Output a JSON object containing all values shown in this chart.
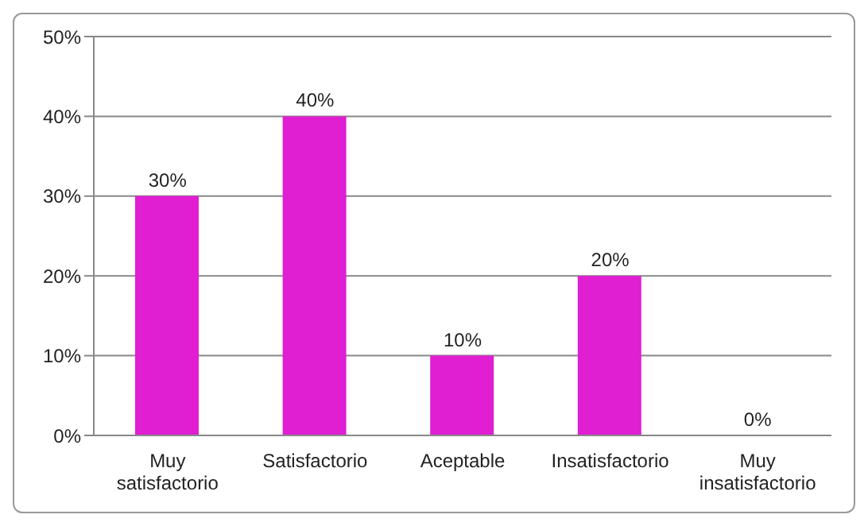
{
  "chart_data": {
    "type": "bar",
    "categories": [
      "Muy satisfactorio",
      "Satisfactorio",
      "Aceptable",
      "Insatisfactorio",
      "Muy insatisfactorio"
    ],
    "values": [
      30,
      40,
      10,
      20,
      0
    ],
    "value_labels": [
      "30%",
      "40%",
      "10%",
      "20%",
      "0%"
    ],
    "color": "#e01ed2",
    "ylim": [
      0,
      50
    ],
    "yticks": [
      {
        "value": 0,
        "label": "0%"
      },
      {
        "value": 10,
        "label": "10%"
      },
      {
        "value": 20,
        "label": "20%"
      },
      {
        "value": 30,
        "label": "30%"
      },
      {
        "value": 40,
        "label": "40%"
      },
      {
        "value": 50,
        "label": "50%"
      }
    ],
    "grid": "y",
    "legend": false
  }
}
